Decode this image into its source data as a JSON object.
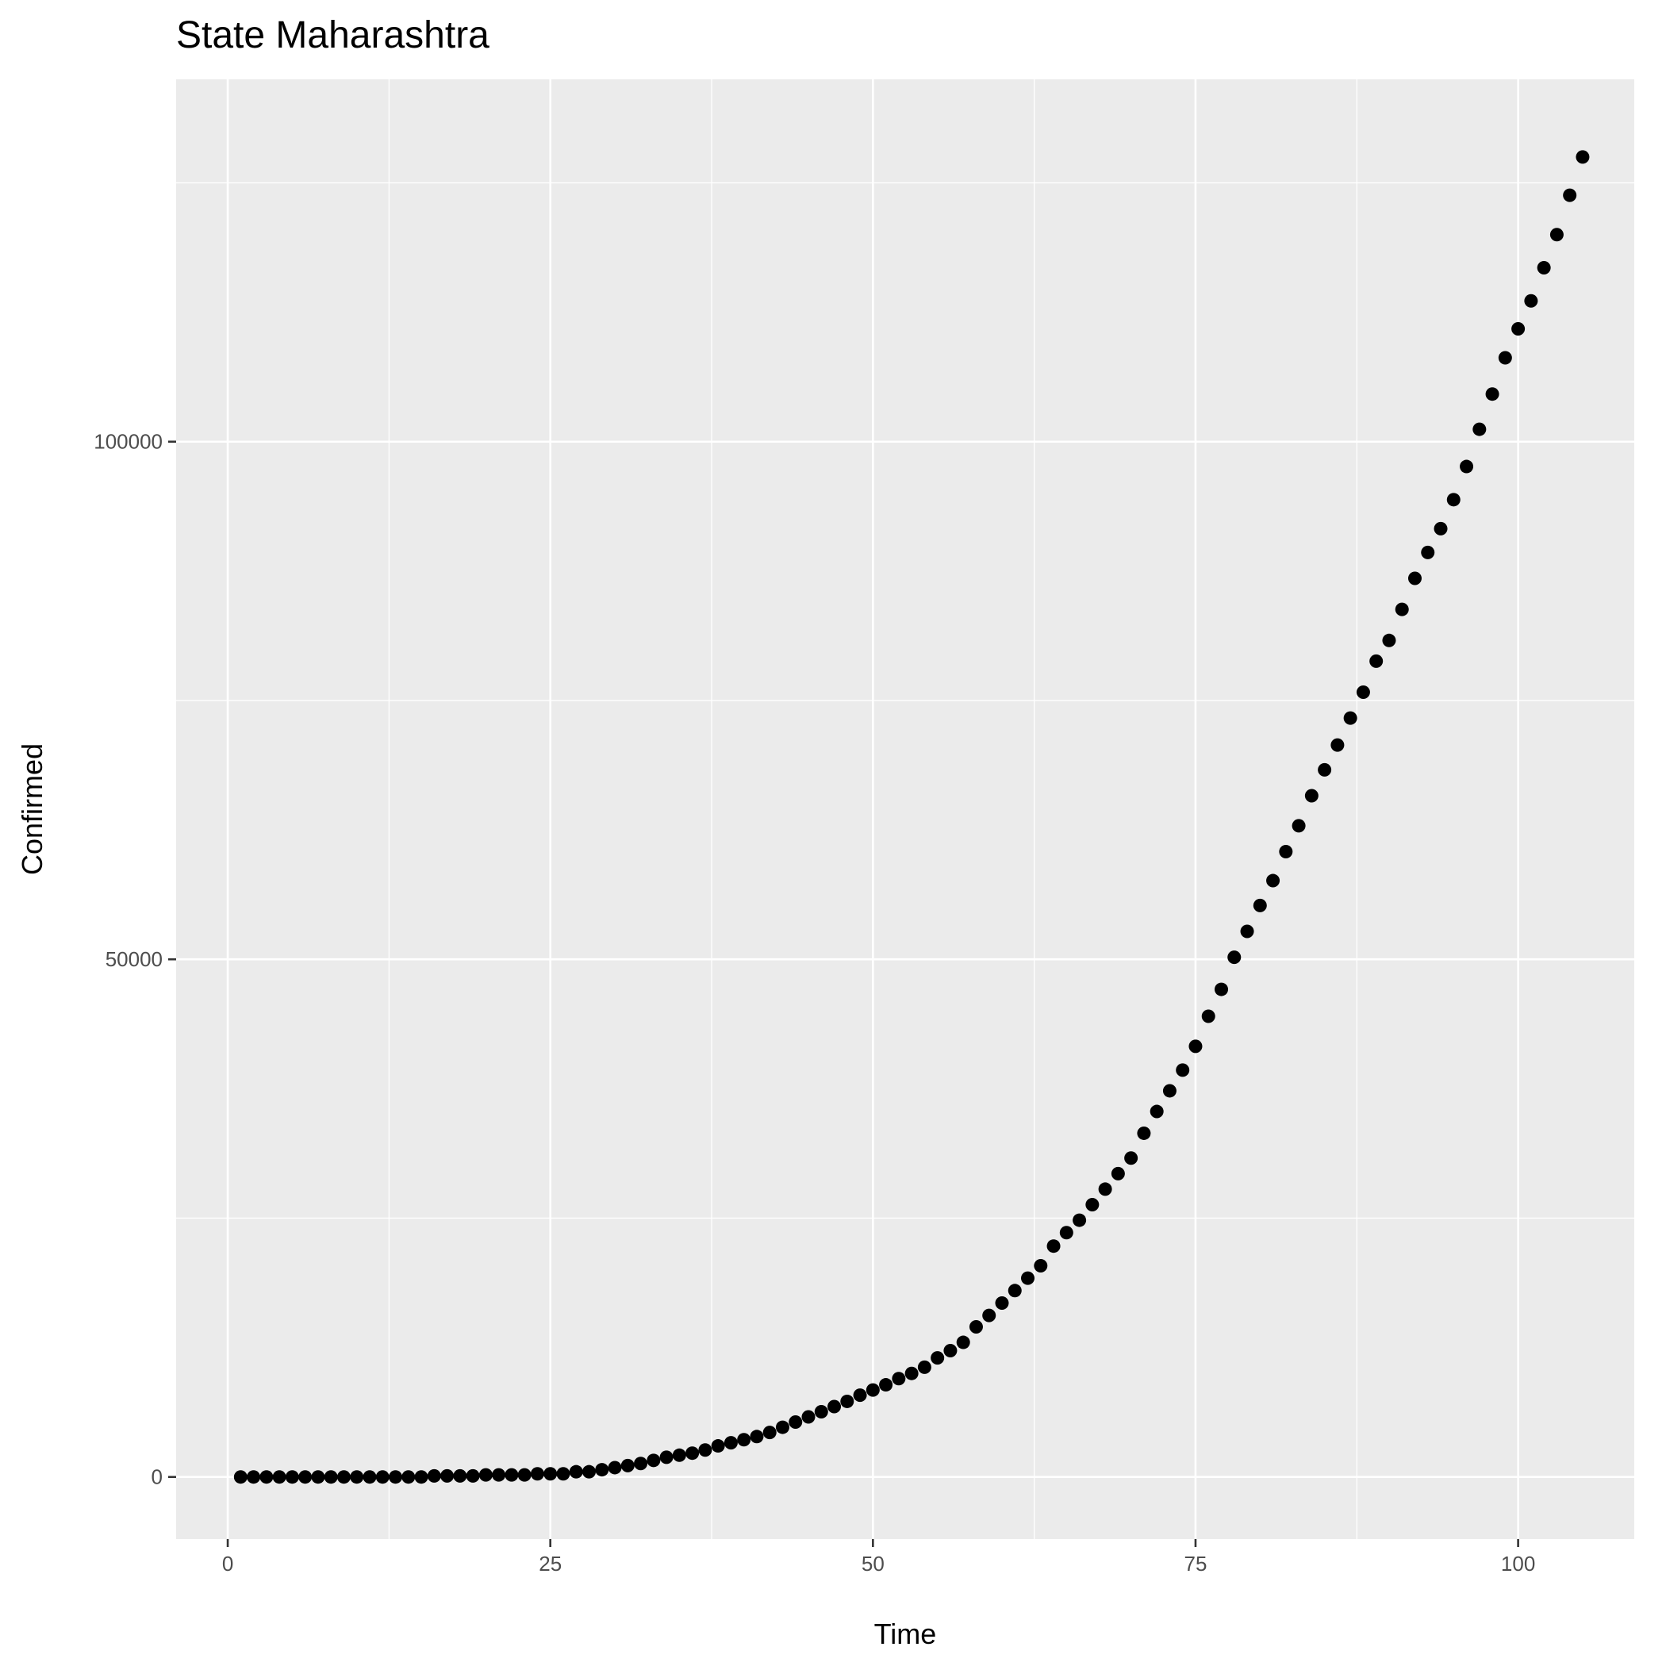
{
  "chart_data": {
    "type": "scatter",
    "title": "State Maharashtra",
    "xlabel": "Time",
    "ylabel": "Confirmed",
    "xlim": [
      -4,
      109
    ],
    "ylim": [
      -6000,
      135000
    ],
    "x_ticks": [
      0,
      25,
      50,
      75,
      100
    ],
    "x_tick_labels": [
      "0",
      "25",
      "50",
      "75",
      "100"
    ],
    "y_ticks": [
      0,
      50000,
      100000
    ],
    "y_tick_labels": [
      "0",
      "50000",
      "100000"
    ],
    "grid": true,
    "legend": "none",
    "point_color": "#000000",
    "panel_color": "#ebebeb",
    "x": [
      1,
      2,
      3,
      4,
      5,
      6,
      7,
      8,
      9,
      10,
      11,
      12,
      13,
      14,
      15,
      16,
      17,
      18,
      19,
      20,
      21,
      22,
      23,
      24,
      25,
      26,
      27,
      28,
      29,
      30,
      31,
      32,
      33,
      34,
      35,
      36,
      37,
      38,
      39,
      40,
      41,
      42,
      43,
      44,
      45,
      46,
      47,
      48,
      49,
      50,
      51,
      52,
      53,
      54,
      55,
      56,
      57,
      58,
      59,
      60,
      61,
      62,
      63,
      64,
      65,
      66,
      67,
      68,
      69,
      70,
      71,
      72,
      73,
      74,
      75,
      76,
      77,
      78,
      79,
      80,
      81,
      82,
      83,
      84,
      85,
      86,
      87,
      88,
      89,
      90,
      91,
      92,
      93,
      94,
      95,
      96,
      97,
      98,
      99,
      100,
      101,
      102,
      103,
      104,
      105
    ],
    "y": [
      0,
      0,
      0,
      0,
      0,
      0,
      0,
      0,
      0,
      0,
      0,
      0,
      0,
      0,
      0,
      100,
      100,
      100,
      100,
      200,
      200,
      200,
      200,
      300,
      300,
      300,
      500,
      500,
      700,
      900,
      1100,
      1300,
      1600,
      1900,
      2100,
      2300,
      2600,
      3000,
      3300,
      3600,
      3900,
      4300,
      4800,
      5300,
      5800,
      6300,
      6800,
      7300,
      7900,
      8400,
      8900,
      9500,
      10000,
      10600,
      11500,
      12200,
      13000,
      14500,
      15600,
      16800,
      18000,
      19200,
      20400,
      22300,
      23600,
      24800,
      26300,
      27800,
      29300,
      30800,
      33200,
      35300,
      37300,
      39300,
      41600,
      44500,
      47100,
      50200,
      52700,
      55200,
      57600,
      60400,
      62900,
      65800,
      68300,
      70700,
      73300,
      75800,
      78800,
      80800,
      83800,
      86800,
      89300,
      91600,
      94400,
      97600,
      101200,
      104600,
      108100,
      110900,
      113600,
      116800,
      120000,
      123800,
      127500
    ]
  }
}
